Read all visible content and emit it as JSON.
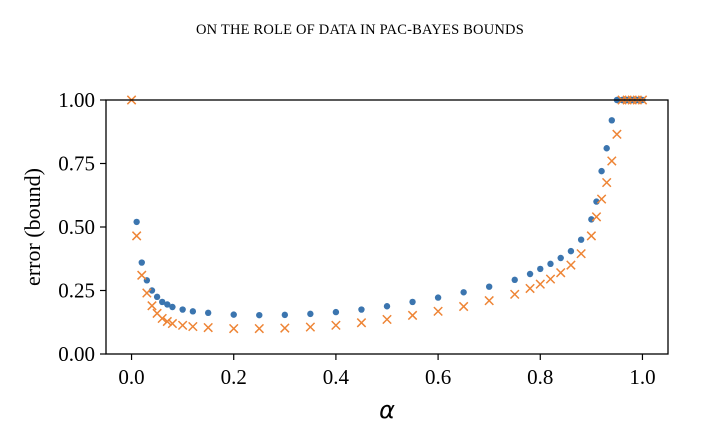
{
  "header": {
    "running_title": "ON THE ROLE OF DATA IN PAC-BAYES BOUNDS"
  },
  "chart_data": {
    "type": "scatter",
    "title": "",
    "xlabel": "α",
    "ylabel": "error (bound)",
    "xlim": [
      -0.05,
      1.05
    ],
    "ylim": [
      0.0,
      1.0
    ],
    "xticks": [
      "0.0",
      "0.2",
      "0.4",
      "0.6",
      "0.8",
      "1.0"
    ],
    "yticks": [
      "0.00",
      "0.25",
      "0.50",
      "0.75",
      "1.00"
    ],
    "grid": false,
    "legend": "none",
    "series": [
      {
        "marker": "circle",
        "color": "#3b75af",
        "x": [
          0.01,
          0.02,
          0.03,
          0.04,
          0.05,
          0.06,
          0.07,
          0.08,
          0.1,
          0.12,
          0.15,
          0.2,
          0.25,
          0.3,
          0.35,
          0.4,
          0.45,
          0.5,
          0.55,
          0.6,
          0.65,
          0.7,
          0.75,
          0.78,
          0.8,
          0.82,
          0.84,
          0.86,
          0.88,
          0.9,
          0.91,
          0.92,
          0.93,
          0.94,
          0.95,
          0.96,
          0.97,
          0.98,
          0.99,
          1.0
        ],
        "y": [
          0.52,
          0.36,
          0.29,
          0.25,
          0.225,
          0.205,
          0.195,
          0.185,
          0.175,
          0.168,
          0.162,
          0.155,
          0.153,
          0.154,
          0.158,
          0.165,
          0.175,
          0.188,
          0.205,
          0.222,
          0.243,
          0.265,
          0.292,
          0.315,
          0.335,
          0.355,
          0.378,
          0.405,
          0.45,
          0.53,
          0.6,
          0.72,
          0.81,
          0.92,
          1.0,
          1.0,
          1.0,
          1.0,
          1.0,
          1.0
        ]
      },
      {
        "marker": "x",
        "color": "#ee8536",
        "x": [
          0.0,
          0.01,
          0.02,
          0.03,
          0.04,
          0.05,
          0.06,
          0.07,
          0.08,
          0.1,
          0.12,
          0.15,
          0.2,
          0.25,
          0.3,
          0.35,
          0.4,
          0.45,
          0.5,
          0.55,
          0.6,
          0.65,
          0.7,
          0.75,
          0.78,
          0.8,
          0.82,
          0.84,
          0.86,
          0.88,
          0.9,
          0.91,
          0.92,
          0.93,
          0.94,
          0.95,
          0.96,
          0.97,
          0.98,
          0.99,
          1.0
        ],
        "y": [
          1.0,
          0.465,
          0.31,
          0.24,
          0.19,
          0.16,
          0.14,
          0.128,
          0.12,
          0.113,
          0.108,
          0.104,
          0.1,
          0.1,
          0.102,
          0.106,
          0.113,
          0.123,
          0.136,
          0.152,
          0.168,
          0.187,
          0.21,
          0.235,
          0.258,
          0.275,
          0.295,
          0.32,
          0.35,
          0.395,
          0.465,
          0.54,
          0.61,
          0.675,
          0.76,
          0.865,
          1.0,
          1.0,
          1.0,
          1.0,
          1.0
        ]
      }
    ]
  }
}
